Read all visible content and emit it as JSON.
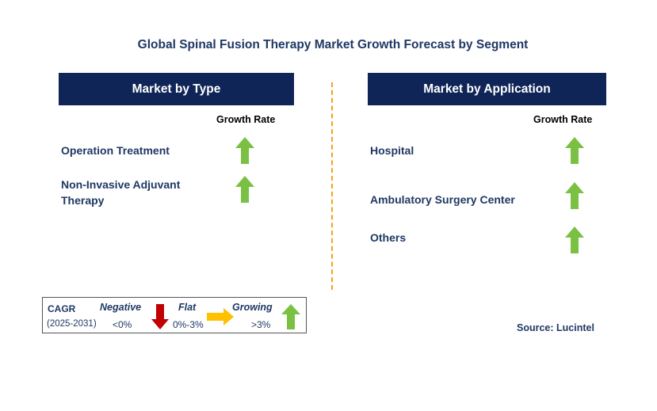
{
  "title": "Global Spinal Fusion Therapy Market Growth Forecast by Segment",
  "left_panel": {
    "header": "Market by Type",
    "growth_rate_label": "Growth Rate",
    "items": [
      {
        "label_line1": "Operation Treatment",
        "label_line2": "",
        "growth": "Growing"
      },
      {
        "label_line1": "Non-Invasive Adjuvant",
        "label_line2": "Therapy",
        "growth": "Growing"
      }
    ]
  },
  "right_panel": {
    "header": "Market by Application",
    "growth_rate_label": "Growth Rate",
    "items": [
      {
        "label": "Hospital",
        "growth": "Growing"
      },
      {
        "label": "Ambulatory Surgery Center",
        "growth": "Growing"
      },
      {
        "label": "Others",
        "growth": "Growing"
      }
    ]
  },
  "legend": {
    "cagr_label": "CAGR",
    "period": "(2025-2031)",
    "negative": {
      "name": "Negative",
      "range": "<0%"
    },
    "flat": {
      "name": "Flat",
      "range": "0%-3%"
    },
    "growing": {
      "name": "Growing",
      "range": ">3%"
    }
  },
  "source": "Source: Lucintel",
  "colors": {
    "header_bg": "#0f2557",
    "text": "#1f3864",
    "growing_arrow": "#7ac143",
    "negative_arrow": "#c00000",
    "flat_arrow": "#ffc000",
    "divider": "#f2a516"
  }
}
